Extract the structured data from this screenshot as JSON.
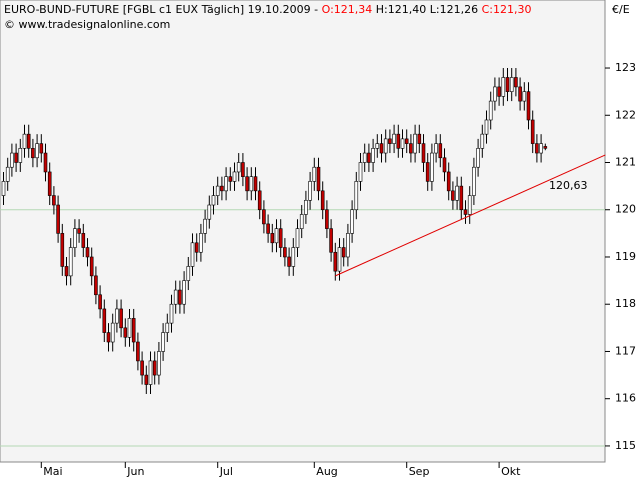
{
  "chart_data": {
    "type": "candlestick",
    "title": "EURO-BUND-FUTURE [FGBL c1 EUX  Täglich] 19.10.2009 -",
    "open_label": "O:121,34",
    "high_label": "H:121,40",
    "low_label": "L:121,26",
    "close_label": "C:121,30",
    "subtitle": "© www.tradesignalonline.com",
    "y_axis_label": "€/E",
    "categories": [
      null,
      null,
      null,
      null,
      null,
      null,
      null,
      null,
      null,
      "Mai",
      null,
      null,
      null,
      null,
      null,
      null,
      null,
      null,
      null,
      null,
      null,
      null,
      null,
      null,
      null,
      null,
      null,
      null,
      null,
      "Jun",
      null,
      null,
      null,
      null,
      null,
      null,
      null,
      null,
      null,
      null,
      null,
      null,
      null,
      null,
      null,
      null,
      null,
      null,
      null,
      null,
      null,
      "Jul",
      null,
      null,
      null,
      null,
      null,
      null,
      null,
      null,
      null,
      null,
      null,
      null,
      null,
      null,
      null,
      null,
      null,
      null,
      null,
      null,
      null,
      null,
      "Aug",
      null,
      null,
      null,
      null,
      null,
      null,
      null,
      null,
      null,
      null,
      null,
      null,
      null,
      null,
      null,
      null,
      null,
      null,
      null,
      null,
      null,
      "Sep",
      null,
      null,
      null,
      null,
      null,
      null,
      null,
      null,
      null,
      null,
      null,
      null,
      null,
      null,
      null,
      null,
      null,
      null,
      null,
      null,
      null,
      "Okt",
      null,
      null,
      null,
      null,
      null,
      null,
      null,
      null,
      null,
      null,
      null
    ],
    "open": [
      120.3,
      120.6,
      120.9,
      121.2,
      121.0,
      121.3,
      121.6,
      121.3,
      121.1,
      121.4,
      121.2,
      120.8,
      120.3,
      120.1,
      119.5,
      118.8,
      118.6,
      119.2,
      119.6,
      119.5,
      119.2,
      119.0,
      118.6,
      118.2,
      117.9,
      117.4,
      117.2,
      117.6,
      117.9,
      117.5,
      117.3,
      117.7,
      117.2,
      116.8,
      116.5,
      116.3,
      116.8,
      116.5,
      117.0,
      117.4,
      117.6,
      118.0,
      118.3,
      118.0,
      118.5,
      118.8,
      119.3,
      119.1,
      119.5,
      119.8,
      120.1,
      120.3,
      120.5,
      120.4,
      120.7,
      120.6,
      120.8,
      121.0,
      120.7,
      120.4,
      120.7,
      120.4,
      120.0,
      119.7,
      119.5,
      119.3,
      119.6,
      119.2,
      119.0,
      118.8,
      119.2,
      119.6,
      119.9,
      120.2,
      120.6,
      120.9,
      120.4,
      120.0,
      119.6,
      119.1,
      118.7,
      119.2,
      119.0,
      119.5,
      120.0,
      120.6,
      121.0,
      121.2,
      121.0,
      121.3,
      121.4,
      121.2,
      121.5,
      121.4,
      121.6,
      121.3,
      121.5,
      121.4,
      121.2,
      121.6,
      121.4,
      121.0,
      120.6,
      121.2,
      121.4,
      121.1,
      120.8,
      120.4,
      120.2,
      120.5,
      120.0,
      119.9,
      120.3,
      120.9,
      121.3,
      121.6,
      121.9,
      122.3,
      122.6,
      122.4,
      122.8,
      122.5,
      122.8,
      122.6,
      122.3,
      122.5,
      121.9,
      121.4,
      121.2,
      121.34
    ],
    "high": [
      120.8,
      121.1,
      121.4,
      121.4,
      121.5,
      121.8,
      121.8,
      121.5,
      121.6,
      121.6,
      121.4,
      121.0,
      120.5,
      120.3,
      119.7,
      119.0,
      119.4,
      119.8,
      119.8,
      119.7,
      119.4,
      119.2,
      118.8,
      118.4,
      118.1,
      117.6,
      117.8,
      118.1,
      118.1,
      117.7,
      117.9,
      117.9,
      117.4,
      117.0,
      116.7,
      117.0,
      117.0,
      117.2,
      117.6,
      117.8,
      118.2,
      118.5,
      118.5,
      118.7,
      119.0,
      119.5,
      119.5,
      119.7,
      120.0,
      120.3,
      120.5,
      120.7,
      120.7,
      120.9,
      120.9,
      121.0,
      121.2,
      121.2,
      120.9,
      120.9,
      120.9,
      120.6,
      120.2,
      119.9,
      119.7,
      119.8,
      119.8,
      119.4,
      119.2,
      119.4,
      119.8,
      120.1,
      120.4,
      120.8,
      121.1,
      121.1,
      120.6,
      120.2,
      119.8,
      119.3,
      119.4,
      119.4,
      119.7,
      120.2,
      120.8,
      121.2,
      121.4,
      121.4,
      121.5,
      121.6,
      121.6,
      121.7,
      121.7,
      121.8,
      121.8,
      121.7,
      121.7,
      121.6,
      121.8,
      121.8,
      121.6,
      121.2,
      121.4,
      121.6,
      121.6,
      121.3,
      121.0,
      120.6,
      120.7,
      120.7,
      120.2,
      120.5,
      121.1,
      121.5,
      121.8,
      122.1,
      122.5,
      122.8,
      122.8,
      123.0,
      123.0,
      123.0,
      123.0,
      122.8,
      122.7,
      122.7,
      122.1,
      121.6,
      121.6,
      121.4
    ],
    "low": [
      120.1,
      120.4,
      120.7,
      120.8,
      120.8,
      121.1,
      121.1,
      120.9,
      120.9,
      121.0,
      120.6,
      120.1,
      119.9,
      119.3,
      118.6,
      118.4,
      118.4,
      119.0,
      119.3,
      119.0,
      118.8,
      118.4,
      118.0,
      117.7,
      117.2,
      117.0,
      117.0,
      117.4,
      117.3,
      117.1,
      117.1,
      117.0,
      116.6,
      116.3,
      116.1,
      116.1,
      116.3,
      116.3,
      116.8,
      117.2,
      117.4,
      117.8,
      117.8,
      117.8,
      118.3,
      118.6,
      118.9,
      118.9,
      119.3,
      119.6,
      119.9,
      120.1,
      120.2,
      120.2,
      120.4,
      120.4,
      120.6,
      120.5,
      120.2,
      120.2,
      120.2,
      119.8,
      119.5,
      119.3,
      119.1,
      119.1,
      119.0,
      118.8,
      118.6,
      118.6,
      119.0,
      119.4,
      119.7,
      120.0,
      120.4,
      120.2,
      119.8,
      119.4,
      118.9,
      118.5,
      118.5,
      118.8,
      118.8,
      119.3,
      119.8,
      120.4,
      120.8,
      120.8,
      120.8,
      121.1,
      121.0,
      121.0,
      121.2,
      121.2,
      121.1,
      121.1,
      121.2,
      121.0,
      121.0,
      121.2,
      120.8,
      120.4,
      120.4,
      121.0,
      120.9,
      120.6,
      120.2,
      120.0,
      120.0,
      119.8,
      119.7,
      119.7,
      120.1,
      120.7,
      121.1,
      121.4,
      121.7,
      122.1,
      122.2,
      122.2,
      122.3,
      122.3,
      122.4,
      122.1,
      122.1,
      121.7,
      121.2,
      121.0,
      121.0,
      121.26
    ],
    "close": [
      120.6,
      120.9,
      121.2,
      121.0,
      121.3,
      121.6,
      121.3,
      121.1,
      121.4,
      121.2,
      120.8,
      120.3,
      120.1,
      119.5,
      118.8,
      118.6,
      119.2,
      119.6,
      119.5,
      119.2,
      119.0,
      118.6,
      118.2,
      117.9,
      117.4,
      117.2,
      117.6,
      117.9,
      117.5,
      117.3,
      117.7,
      117.2,
      116.8,
      116.5,
      116.3,
      116.8,
      116.5,
      117.0,
      117.4,
      117.6,
      118.0,
      118.3,
      118.0,
      118.5,
      118.8,
      119.3,
      119.1,
      119.5,
      119.8,
      120.1,
      120.3,
      120.5,
      120.4,
      120.7,
      120.6,
      120.8,
      121.0,
      120.7,
      120.4,
      120.7,
      120.4,
      120.0,
      119.7,
      119.5,
      119.3,
      119.6,
      119.2,
      119.0,
      118.8,
      119.2,
      119.6,
      119.9,
      120.2,
      120.6,
      120.9,
      120.4,
      120.0,
      119.6,
      119.1,
      118.7,
      119.2,
      119.0,
      119.5,
      120.0,
      120.6,
      121.0,
      121.2,
      121.0,
      121.3,
      121.4,
      121.2,
      121.5,
      121.4,
      121.6,
      121.3,
      121.5,
      121.4,
      121.2,
      121.6,
      121.4,
      121.0,
      120.6,
      121.2,
      121.4,
      121.1,
      120.8,
      120.4,
      120.2,
      120.5,
      120.0,
      119.9,
      120.3,
      120.9,
      121.3,
      121.6,
      121.9,
      122.3,
      122.6,
      122.4,
      122.8,
      122.5,
      122.8,
      122.6,
      122.3,
      122.5,
      121.9,
      121.4,
      121.2,
      121.4,
      121.3
    ],
    "up_color": "#ffffff",
    "down_color": "#c00000",
    "edge_color": "#000000",
    "highlight_color": "#ff0000",
    "ylim": [
      114.66,
      124.44
    ],
    "yticks": [
      115,
      116,
      117,
      118,
      119,
      120,
      121,
      122,
      123
    ],
    "reference_lines": [
      120,
      115
    ],
    "reference_color": "#b4d8b4",
    "trendline": {
      "start_index": 79,
      "start_value": 118.6,
      "end_index": 143.3,
      "end_value": 121.16,
      "color": "#e00000",
      "value_labels": [
        {
          "value": 120.63,
          "label": "120,63"
        }
      ]
    }
  }
}
